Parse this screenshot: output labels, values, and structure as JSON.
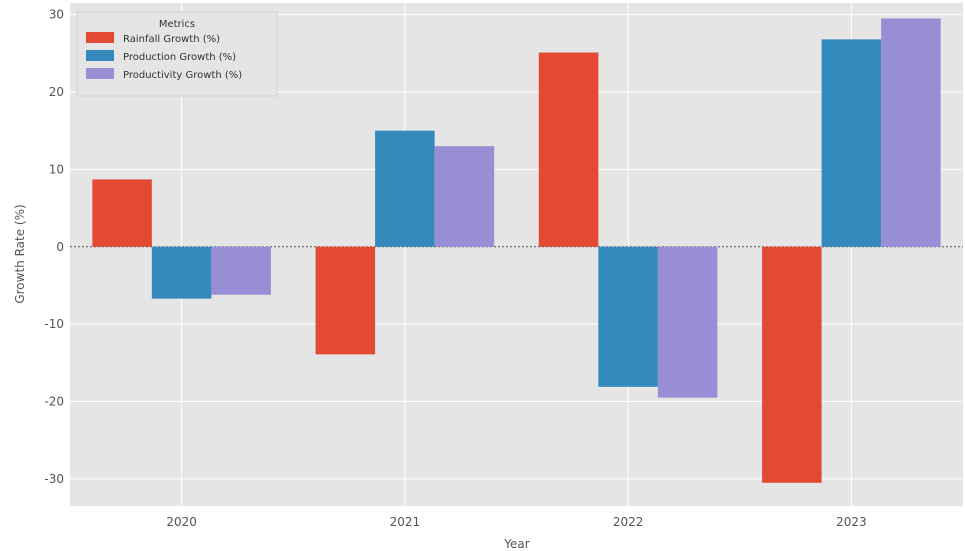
{
  "chart_data": {
    "type": "bar",
    "title": "",
    "xlabel": "Year",
    "ylabel": "Growth Rate (%)",
    "categories": [
      "2020",
      "2021",
      "2022",
      "2023"
    ],
    "ylim": [
      -33.5,
      31.5
    ],
    "yticks": [
      -30,
      -20,
      -10,
      0,
      10,
      20,
      30
    ],
    "grid": true,
    "legend": {
      "title": "Metrics",
      "placement": "top-left"
    },
    "series": [
      {
        "name": "Rainfall Growth (%)",
        "color": "#e24a33",
        "values": [
          8.7,
          -13.9,
          25.1,
          -30.5
        ]
      },
      {
        "name": "Production Growth (%)",
        "color": "#348abd",
        "values": [
          -6.7,
          15.0,
          -18.1,
          26.8
        ]
      },
      {
        "name": "Productivity Growth (%)",
        "color": "#988ed5",
        "values": [
          -6.2,
          13.0,
          -19.5,
          29.5
        ]
      }
    ]
  }
}
